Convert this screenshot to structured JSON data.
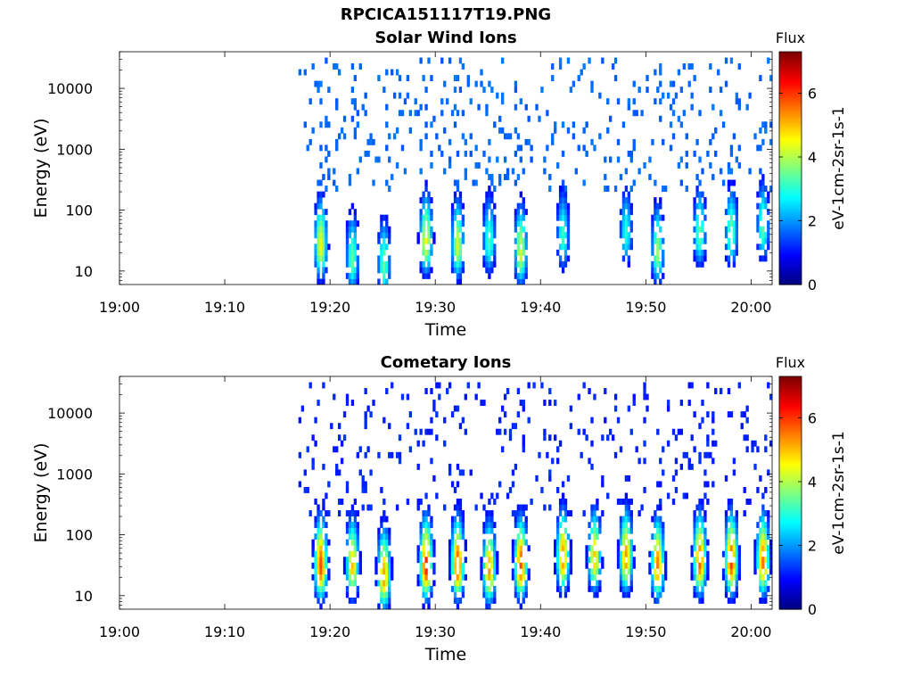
{
  "figure": {
    "title": "RPCICA151117T19.PNG"
  },
  "chart_data": [
    {
      "type": "heatmap",
      "title": "Solar Wind Ions",
      "xlabel": "Time",
      "ylabel": "Energy (eV)",
      "yscale": "log",
      "xlim": [
        "19:00",
        "20:02"
      ],
      "ylim": [
        6,
        40000
      ],
      "x_ticks": [
        "19:00",
        "19:10",
        "19:20",
        "19:30",
        "19:40",
        "19:50",
        "20:00"
      ],
      "y_ticks": [
        10,
        100,
        1000,
        10000
      ],
      "y_tick_labels": [
        "10",
        "100",
        "1000",
        "10000"
      ],
      "data_start": "19:17",
      "colorbar": {
        "label": "eV-1cm-2sr-1s-1",
        "title": "Flux",
        "min": 0,
        "max": 7.3,
        "ticks": [
          0,
          2,
          4,
          6
        ],
        "colormap": "jet"
      },
      "bursts": [
        {
          "t": "19:19",
          "peak_energy": 25,
          "max_flux": 4.5
        },
        {
          "t": "19:22",
          "peak_energy": 15,
          "max_flux": 3.5
        },
        {
          "t": "19:25",
          "peak_energy": 12,
          "max_flux": 3.5
        },
        {
          "t": "19:29",
          "peak_energy": 30,
          "max_flux": 4.6
        },
        {
          "t": "19:32",
          "peak_energy": 25,
          "max_flux": 4.2
        },
        {
          "t": "19:35",
          "peak_energy": 30,
          "max_flux": 3.3
        },
        {
          "t": "19:38",
          "peak_energy": 20,
          "max_flux": 4.3
        },
        {
          "t": "19:42",
          "peak_energy": 35,
          "max_flux": 3.2
        },
        {
          "t": "19:48",
          "peak_energy": 40,
          "max_flux": 3.0
        },
        {
          "t": "19:51",
          "peak_energy": 20,
          "max_flux": 3.8
        },
        {
          "t": "19:55",
          "peak_energy": 40,
          "max_flux": 3.5
        },
        {
          "t": "19:58",
          "peak_energy": 40,
          "max_flux": 3.6
        },
        {
          "t": "20:01",
          "peak_energy": 50,
          "max_flux": 3.4
        }
      ],
      "background": {
        "energy_range": [
          200,
          35000
        ],
        "flux": 1.5
      }
    },
    {
      "type": "heatmap",
      "title": "Cometary Ions",
      "xlabel": "Time",
      "ylabel": "Energy (eV)",
      "yscale": "log",
      "xlim": [
        "19:00",
        "20:02"
      ],
      "ylim": [
        6,
        40000
      ],
      "x_ticks": [
        "19:00",
        "19:10",
        "19:20",
        "19:30",
        "19:40",
        "19:50",
        "20:00"
      ],
      "y_ticks": [
        10,
        100,
        1000,
        10000
      ],
      "y_tick_labels": [
        "10",
        "100",
        "1000",
        "10000"
      ],
      "data_start": "19:17",
      "colorbar": {
        "label": "eV-1cm-2sr-1s-1",
        "title": "Flux",
        "min": 0,
        "max": 7.3,
        "ticks": [
          0,
          2,
          4,
          6
        ],
        "colormap": "jet"
      },
      "bursts": [
        {
          "t": "19:19",
          "peak_energy": 30,
          "max_flux": 5.9
        },
        {
          "t": "19:22",
          "peak_energy": 30,
          "max_flux": 5.0
        },
        {
          "t": "19:25",
          "peak_energy": 20,
          "max_flux": 5.3
        },
        {
          "t": "19:29",
          "peak_energy": 30,
          "max_flux": 6.2
        },
        {
          "t": "19:32",
          "peak_energy": 30,
          "max_flux": 6.0
        },
        {
          "t": "19:35",
          "peak_energy": 25,
          "max_flux": 5.3
        },
        {
          "t": "19:38",
          "peak_energy": 30,
          "max_flux": 5.9
        },
        {
          "t": "19:42",
          "peak_energy": 40,
          "max_flux": 5.4
        },
        {
          "t": "19:45",
          "peak_energy": 40,
          "max_flux": 5.0
        },
        {
          "t": "19:48",
          "peak_energy": 40,
          "max_flux": 5.4
        },
        {
          "t": "19:51",
          "peak_energy": 30,
          "max_flux": 5.5
        },
        {
          "t": "19:55",
          "peak_energy": 35,
          "max_flux": 5.8
        },
        {
          "t": "19:58",
          "peak_energy": 35,
          "max_flux": 6.0
        },
        {
          "t": "20:01",
          "peak_energy": 35,
          "max_flux": 5.6
        }
      ],
      "background": {
        "energy_range": [
          200,
          35000
        ],
        "flux": 1.0
      }
    }
  ]
}
